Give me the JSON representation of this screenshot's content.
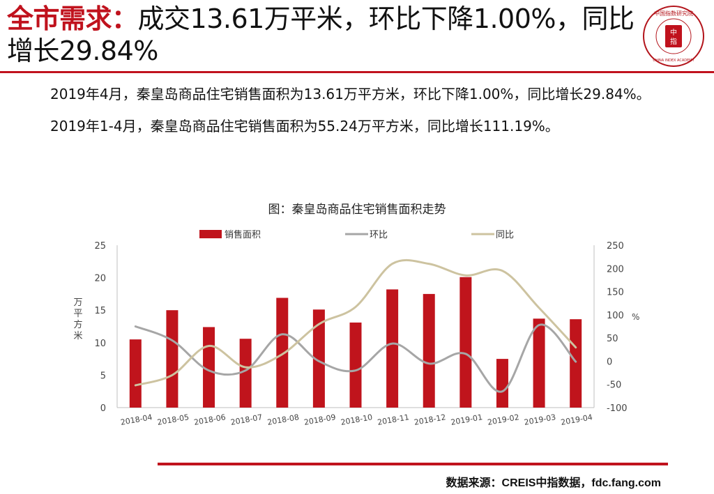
{
  "headline": {
    "prefix": "全市需求：",
    "rest": "成交13.61万平米，环比下降1.00%，同比增长29.84%"
  },
  "logo": {
    "top_text": "中国指数研究院",
    "center_text": "中",
    "center_text_2": "指",
    "bottom_text": "CHINA INDEX ACADEMY"
  },
  "paragraphs": [
    "2019年4月，秦皇岛商品住宅销售面积为13.61万平方米，环比下降1.00%，同比增长29.84%。",
    "2019年1-4月，秦皇岛商品住宅销售面积为55.24万平方米，同比增长111.19%。"
  ],
  "source": "数据来源：CREIS中指数据，fdc.fang.com",
  "colors": {
    "accent": "#c0121d",
    "bar": "#c0141c",
    "mom_line": "#a6a6a6",
    "yoy_line": "#cdc3a0",
    "axis": "#bfbfbf"
  },
  "chart_data": {
    "type": "bar",
    "title": "图：秦皇岛商品住宅销售面积走势",
    "categories": [
      "2018-04",
      "2018-05",
      "2018-06",
      "2018-07",
      "2018-08",
      "2018-09",
      "2018-10",
      "2018-11",
      "2018-12",
      "2019-01",
      "2019-02",
      "2019-03",
      "2019-04"
    ],
    "series": [
      {
        "name": "销售面积",
        "type": "bar",
        "axis": "left",
        "values": [
          10.5,
          15.0,
          12.4,
          10.6,
          16.9,
          15.1,
          13.1,
          18.2,
          17.5,
          20.1,
          7.5,
          13.7,
          13.61
        ]
      },
      {
        "name": "环比",
        "type": "line",
        "axis": "right",
        "values": [
          75,
          45,
          -20,
          -20,
          58,
          0,
          -20,
          38,
          -5,
          16,
          -65,
          78,
          -1
        ]
      },
      {
        "name": "同比",
        "type": "line",
        "axis": "right",
        "values": [
          -52,
          -30,
          33,
          -13,
          15,
          80,
          117,
          210,
          210,
          185,
          195,
          115,
          29.84
        ]
      }
    ],
    "ylabel": "万平方米",
    "ylim": [
      0,
      25
    ],
    "yticks": [
      0,
      5,
      10,
      15,
      20,
      25
    ],
    "y2label": "%",
    "y2lim": [
      -100,
      250
    ],
    "y2ticks": [
      -100,
      -50,
      0,
      50,
      100,
      150,
      200,
      250
    ],
    "legend_position": "top"
  }
}
